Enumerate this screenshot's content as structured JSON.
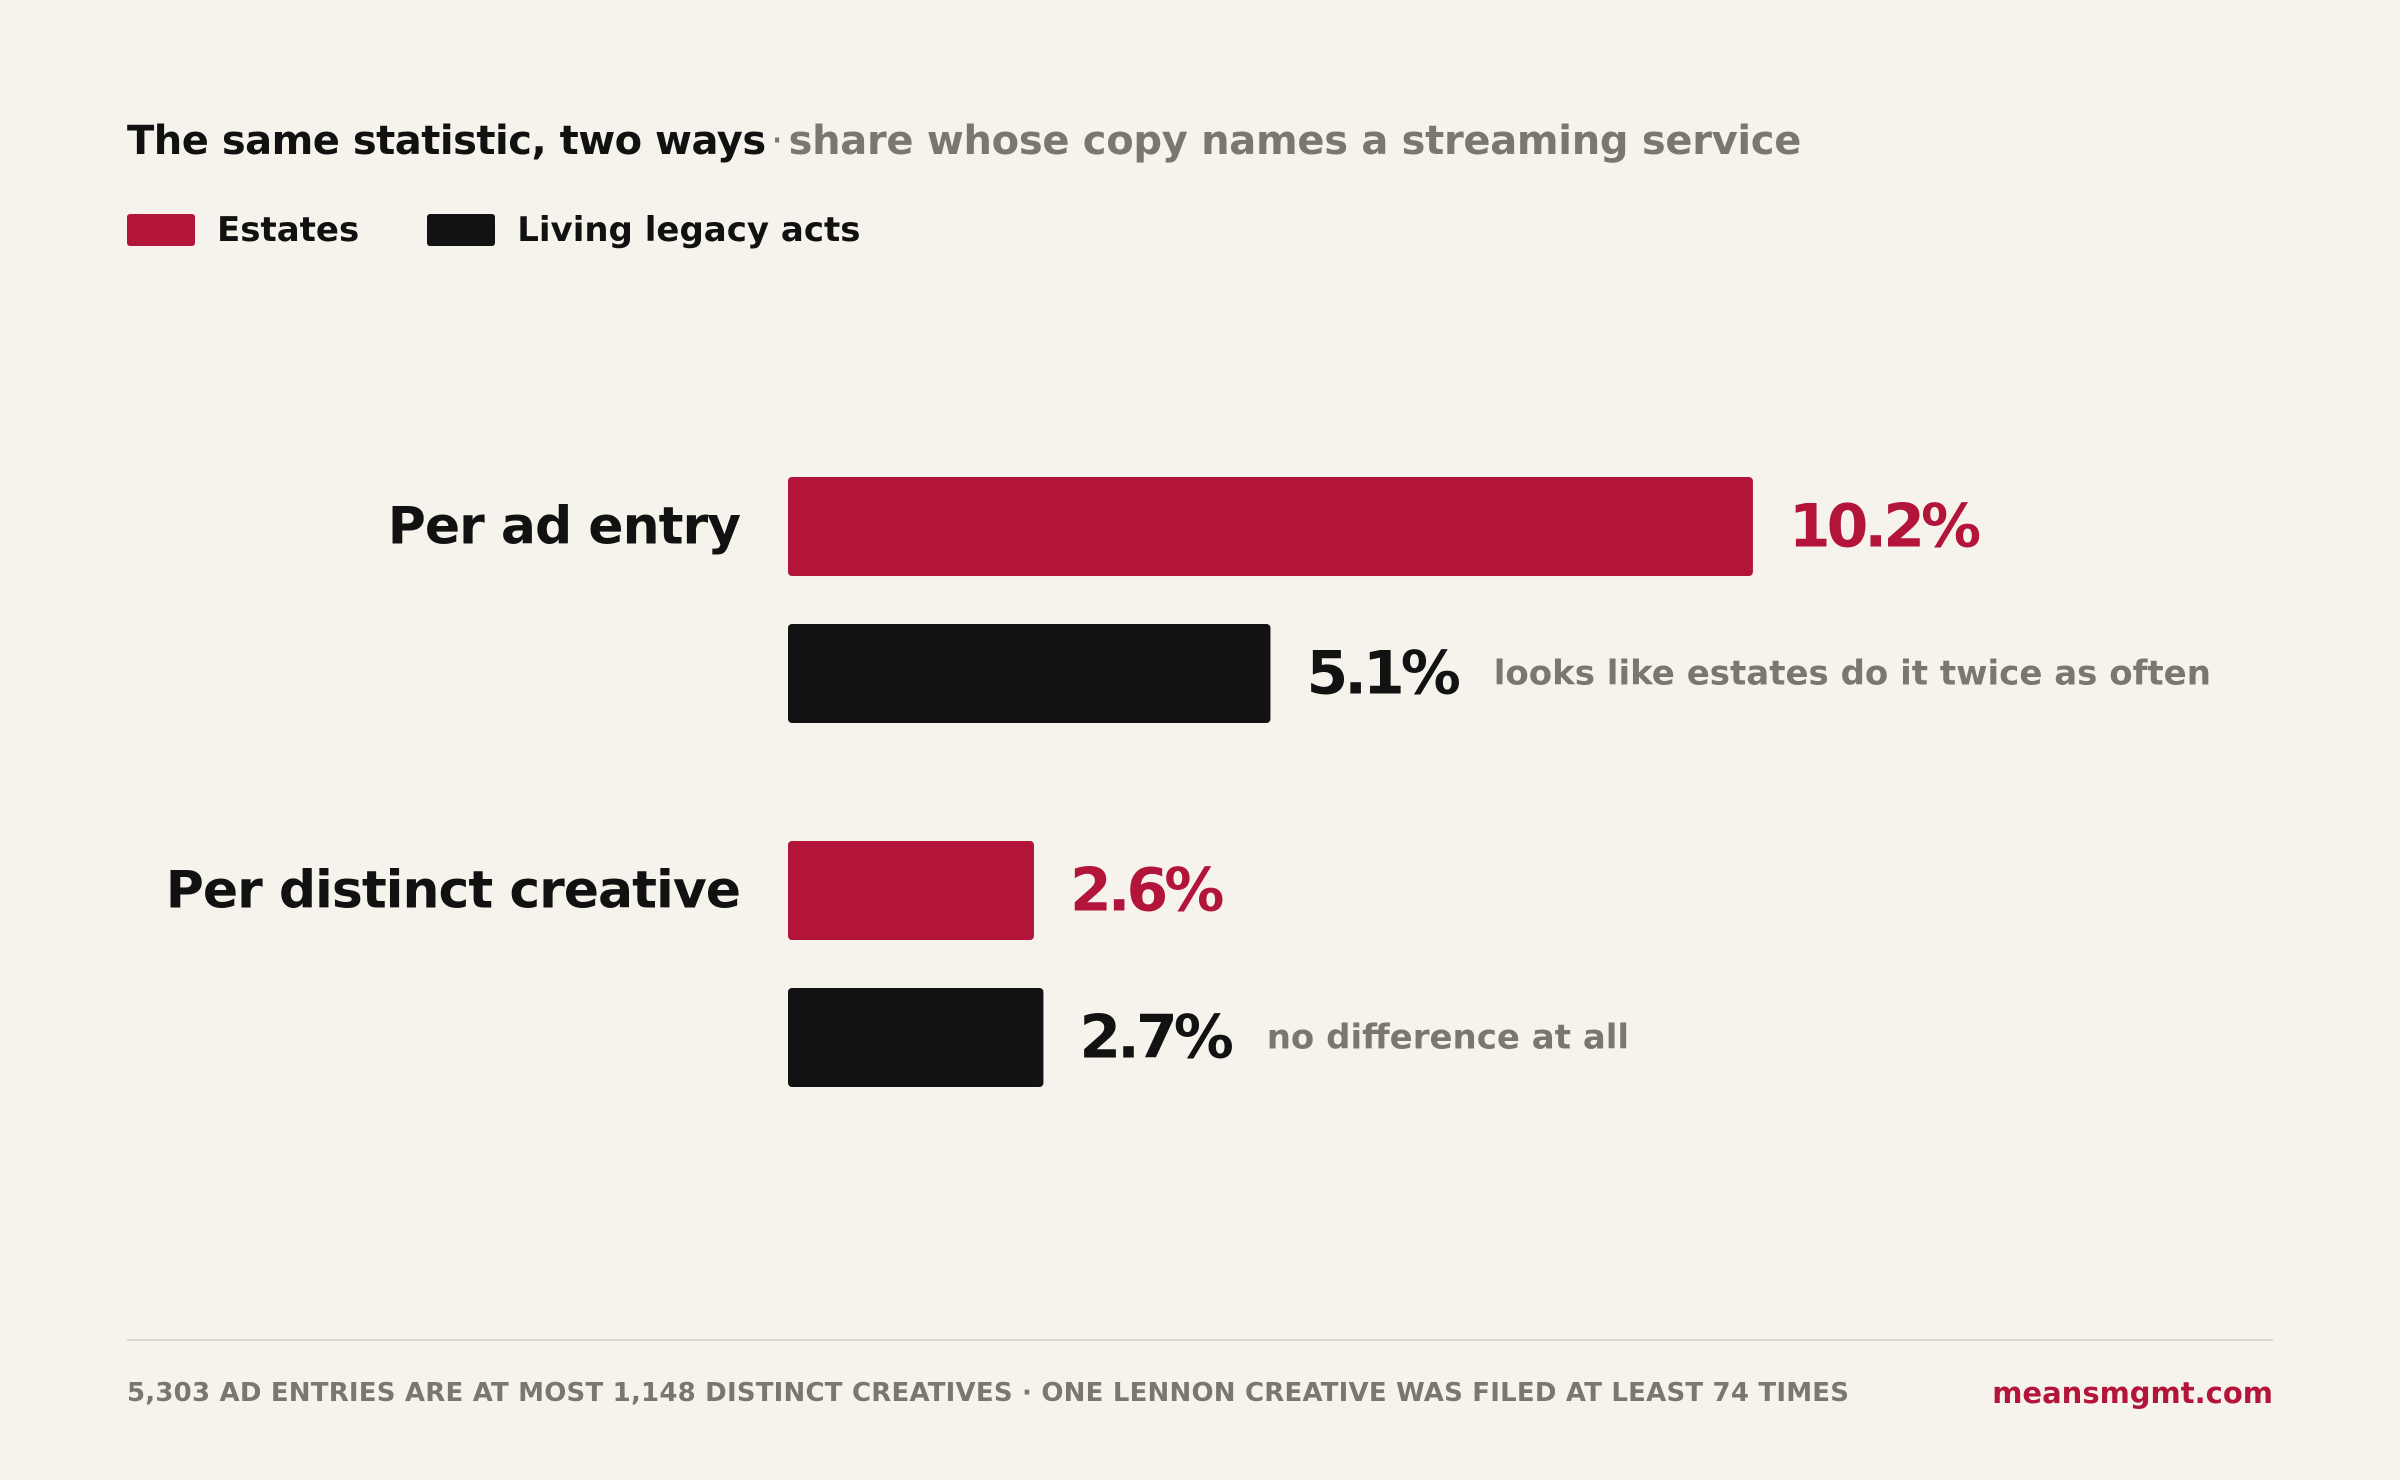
{
  "header": {
    "title": "The same statistic, two ways",
    "separator": "·",
    "subtitle": "share whose copy names a streaming service"
  },
  "legend": [
    {
      "label": "Estates",
      "color": "#b3143a"
    },
    {
      "label": "Living legacy acts",
      "color": "#121212"
    }
  ],
  "chart_data": {
    "type": "bar",
    "orientation": "horizontal",
    "unit": "%",
    "categories": [
      "Per ad entry",
      "Per distinct creative"
    ],
    "series": [
      {
        "name": "Estates",
        "color": "#b3143a",
        "values": [
          10.2,
          2.6
        ],
        "labels": [
          "10.2%",
          "2.6%"
        ]
      },
      {
        "name": "Living legacy acts",
        "color": "#121212",
        "values": [
          5.1,
          2.7
        ],
        "labels": [
          "5.1%",
          "2.7%"
        ]
      }
    ],
    "annotations": [
      {
        "category": 0,
        "series": 1,
        "text": "looks like estates do it twice as often"
      },
      {
        "category": 1,
        "series": 1,
        "text": "no difference at all"
      }
    ],
    "grid": false,
    "legend_position": "top-left"
  },
  "footer": {
    "note": "5,303 AD ENTRIES ARE AT MOST 1,148 DISTINCT CREATIVES · ONE LENNON CREATIVE WAS FILED AT LEAST 74 TIMES",
    "brand": "meansmgmt.com"
  }
}
